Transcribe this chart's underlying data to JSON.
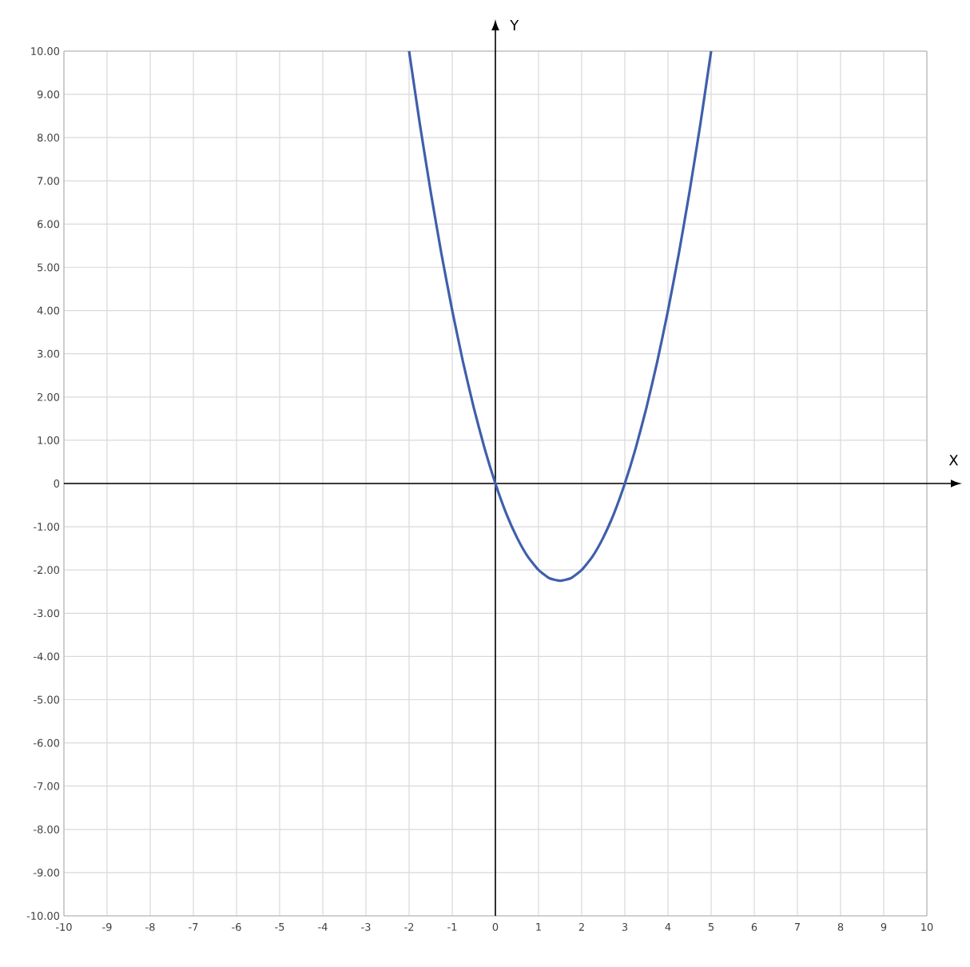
{
  "chart_data": {
    "type": "line",
    "xlabel": "X",
    "ylabel": "Y",
    "x": [
      -2,
      -1.75,
      -1.5,
      -1.25,
      -1,
      -0.75,
      -0.5,
      -0.25,
      0,
      0.25,
      0.5,
      0.75,
      1,
      1.25,
      1.5,
      1.75,
      2,
      2.25,
      2.5,
      2.75,
      3,
      3.25,
      3.5,
      3.75,
      4,
      4.25,
      4.5,
      4.75,
      5
    ],
    "series": [
      {
        "color": "#3f5fab",
        "values": [
          10,
          8.31,
          6.75,
          5.31,
          4,
          2.81,
          1.75,
          0.81,
          0,
          -0.69,
          -1.25,
          -1.69,
          -2,
          -2.19,
          -2.25,
          -2.19,
          -2,
          -1.69,
          -1.25,
          -0.69,
          0,
          0.81,
          1.75,
          2.81,
          4,
          5.31,
          6.75,
          8.31,
          10
        ]
      }
    ],
    "xlim": [
      -10,
      10
    ],
    "ylim": [
      -10,
      10
    ],
    "xticks": [
      -10,
      -9,
      -8,
      -7,
      -6,
      -5,
      -4,
      -3,
      -2,
      -1,
      0,
      1,
      2,
      3,
      4,
      5,
      6,
      7,
      8,
      9,
      10
    ],
    "yticks": [
      {
        "value": -10,
        "label": "-10.00"
      },
      {
        "value": -9,
        "label": "-9.00"
      },
      {
        "value": -8,
        "label": "-8.00"
      },
      {
        "value": -7,
        "label": "-7.00"
      },
      {
        "value": -6,
        "label": "-6.00"
      },
      {
        "value": -5,
        "label": "-5.00"
      },
      {
        "value": -4,
        "label": "-4.00"
      },
      {
        "value": -3,
        "label": "-3.00"
      },
      {
        "value": -2,
        "label": "-2.00"
      },
      {
        "value": -1,
        "label": "-1.00"
      },
      0,
      {
        "value": 1,
        "label": "1.00"
      },
      {
        "value": 2,
        "label": "2.00"
      },
      {
        "value": 3,
        "label": "3.00"
      },
      {
        "value": 4,
        "label": "4.00"
      },
      {
        "value": 5,
        "label": "5.00"
      },
      {
        "value": 6,
        "label": "6.00"
      },
      {
        "value": 7,
        "label": "7.00"
      },
      {
        "value": 8,
        "label": "8.00"
      },
      {
        "value": 9,
        "label": "9.00"
      },
      {
        "value": 10,
        "label": "10.00"
      }
    ],
    "grid": true,
    "marker": "none",
    "line_style": "solid"
  }
}
